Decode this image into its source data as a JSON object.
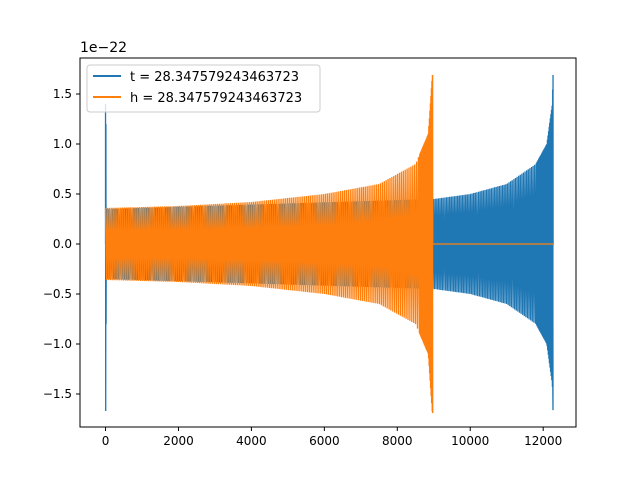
{
  "chart_data": {
    "type": "line",
    "title": "",
    "xlabel": "",
    "ylabel": "",
    "xlim": [
      -700,
      12900
    ],
    "ylim": [
      -1.83,
      1.86
    ],
    "y_scale_label": "1e−22",
    "x_ticks": [
      0,
      2000,
      4000,
      6000,
      8000,
      10000,
      12000
    ],
    "x_tick_labels": [
      "0",
      "2000",
      "4000",
      "6000",
      "8000",
      "10000",
      "12000"
    ],
    "y_ticks": [
      -1.5,
      -1.0,
      -0.5,
      0.0,
      0.5,
      1.0,
      1.5
    ],
    "y_tick_labels": [
      "−1.5",
      "−1.0",
      "−0.5",
      "0.0",
      "0.5",
      "1.0",
      "1.5"
    ],
    "grid": false,
    "legend_position": "upper-left",
    "series": [
      {
        "name": "t = 28.347579243463723",
        "color": "#1f77b4",
        "description": "chirp waveform: spike near x=0 reaching about ±1.67, amplitude ~0.45 at x≈9000 growing to ~1.69 at x≈12270, zero after",
        "envelope_x": [
          0,
          9000,
          10000,
          11000,
          11800,
          12100,
          12250,
          12270
        ],
        "envelope_y": [
          0.35,
          0.45,
          0.5,
          0.6,
          0.8,
          1.0,
          1.4,
          1.69
        ],
        "x_start": 0,
        "x_end": 12270
      },
      {
        "name": "h = 28.347579243463723",
        "color": "#ff7f0e",
        "description": "chirp waveform: amplitude ~0.36 at x≈0 growing to ~1.69 at x≈8970, then flat zero to x≈12270",
        "envelope_x": [
          0,
          2000,
          4000,
          6000,
          7500,
          8500,
          8850,
          8960
        ],
        "envelope_y": [
          0.36,
          0.38,
          0.42,
          0.5,
          0.6,
          0.8,
          1.1,
          1.69
        ],
        "x_start": 0,
        "x_end": 8970,
        "flat_end": 12270
      }
    ]
  }
}
